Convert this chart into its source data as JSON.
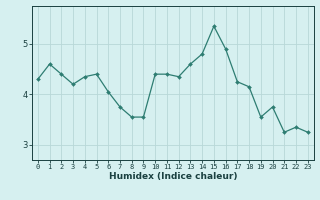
{
  "x": [
    0,
    1,
    2,
    3,
    4,
    5,
    6,
    7,
    8,
    9,
    10,
    11,
    12,
    13,
    14,
    15,
    16,
    17,
    18,
    19,
    20,
    21,
    22,
    23
  ],
  "y": [
    4.3,
    4.6,
    4.4,
    4.2,
    4.35,
    4.4,
    4.05,
    3.75,
    3.55,
    3.55,
    4.4,
    4.4,
    4.35,
    4.6,
    4.8,
    5.35,
    4.9,
    4.25,
    4.15,
    3.55,
    3.75,
    3.25,
    3.35,
    3.25
  ],
  "line_color": "#2e7d72",
  "marker": "D",
  "marker_size": 2,
  "bg_color": "#d6f0f0",
  "grid_color": "#b8d8d8",
  "xlabel": "Humidex (Indice chaleur)",
  "xlabel_fontsize": 6.5,
  "xlabel_color": "#1a4040",
  "tick_color": "#1a4040",
  "ylim": [
    2.7,
    5.75
  ],
  "xlim": [
    -0.5,
    23.5
  ],
  "yticks": [
    3,
    4,
    5
  ],
  "xticks": [
    0,
    1,
    2,
    3,
    4,
    5,
    6,
    7,
    8,
    9,
    10,
    11,
    12,
    13,
    14,
    15,
    16,
    17,
    18,
    19,
    20,
    21,
    22,
    23
  ],
  "tick_fontsize": 5.0,
  "line_width": 0.9
}
